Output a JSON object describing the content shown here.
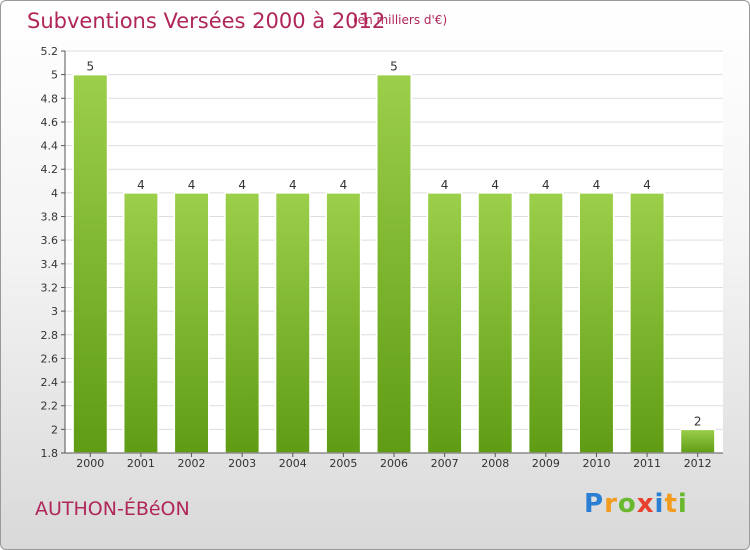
{
  "header": {
    "title": "Subventions Versées 2000 à 2012",
    "subtitle": "(en milliers d'€)"
  },
  "footer": {
    "commune": "AUTHON-ÉBéON",
    "logo_letters": [
      "P",
      "r",
      "o",
      "x",
      "i",
      "t",
      "i"
    ],
    "logo_colors": [
      "#2a7fd4",
      "#f29b1d",
      "#6ab82e",
      "#e8412c",
      "#2a7fd4",
      "#f29b1d",
      "#6ab82e"
    ]
  },
  "chart_data": {
    "type": "bar",
    "categories": [
      "2000",
      "2001",
      "2002",
      "2003",
      "2004",
      "2005",
      "2006",
      "2007",
      "2008",
      "2009",
      "2010",
      "2011",
      "2012"
    ],
    "values": [
      5,
      4,
      4,
      4,
      4,
      4,
      5,
      4,
      4,
      4,
      4,
      4,
      2
    ],
    "value_labels": [
      "5",
      "4",
      "4",
      "4",
      "4",
      "4",
      "5",
      "4",
      "4",
      "4",
      "4",
      "4",
      "2"
    ],
    "yticks": [
      "1.8",
      "2",
      "2.2",
      "2.4",
      "2.6",
      "2.8",
      "3",
      "3.2",
      "3.4",
      "3.6",
      "3.8",
      "4",
      "4.2",
      "4.4",
      "4.6",
      "4.8",
      "5",
      "5.2"
    ],
    "ylim": [
      1.8,
      5.2
    ],
    "bar_color_top": "#9ccf4a",
    "bar_color_bottom": "#5f9c14",
    "grid": true
  }
}
